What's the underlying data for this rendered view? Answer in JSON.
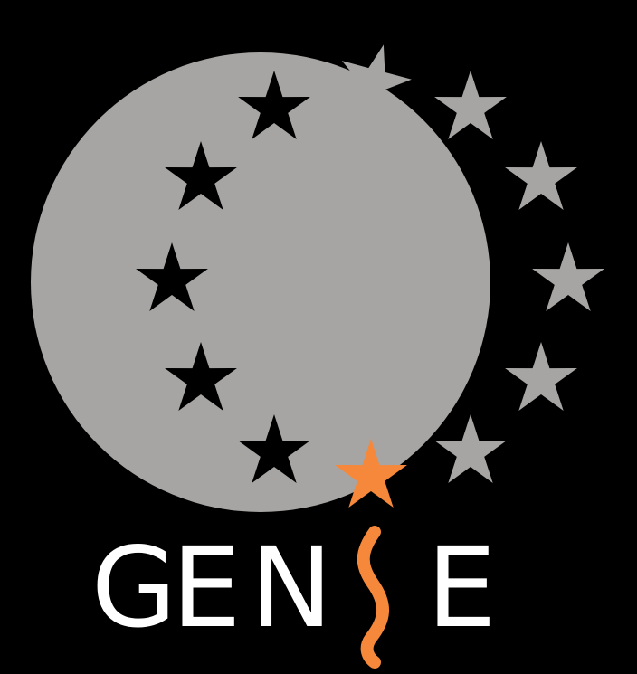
{
  "logo": {
    "letters": [
      "G",
      "E",
      "N",
      "E"
    ]
  }
}
